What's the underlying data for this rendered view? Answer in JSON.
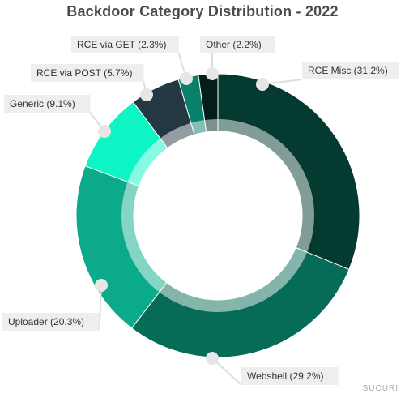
{
  "chart_data": {
    "type": "pie",
    "title": "Backdoor Category Distribution - 2022",
    "slices": [
      {
        "label": "RCE Misc (31.2%)",
        "value": 31.2,
        "color": "#053a30"
      },
      {
        "label": "Webshell (29.2%)",
        "value": 29.2,
        "color": "#066b57"
      },
      {
        "label": "Uploader (20.3%)",
        "value": 20.3,
        "color": "#0aaa8a"
      },
      {
        "label": "Generic (9.1%)",
        "value": 9.1,
        "color": "#0ef5c5"
      },
      {
        "label": "RCE via POST (5.7%)",
        "value": 5.7,
        "color": "#243842"
      },
      {
        "label": "RCE via GET (2.3%)",
        "value": 2.3,
        "color": "#08806a"
      },
      {
        "label": "Other (2.2%)",
        "value": 2.2,
        "color": "#031e19"
      }
    ]
  },
  "watermark": "SUCURI"
}
